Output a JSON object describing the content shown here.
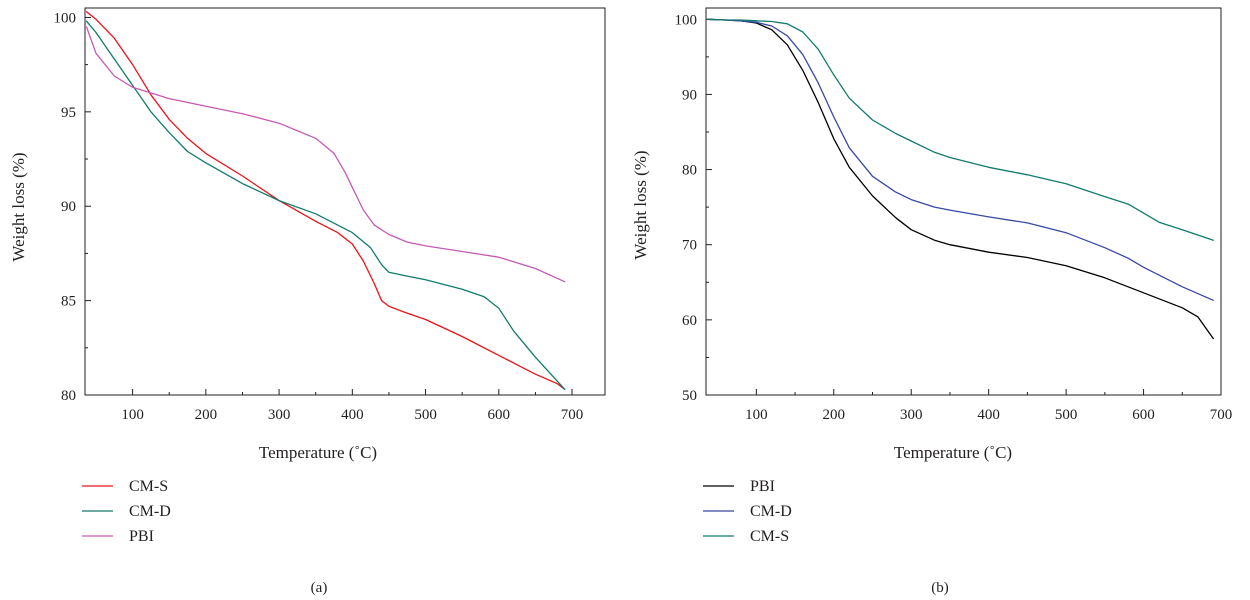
{
  "chart_data": [
    {
      "panel": "(a)",
      "type": "line",
      "title": "",
      "xlabel": "Temperature (˚C)",
      "ylabel": "Weight loss (%)",
      "xlim": [
        35,
        745
      ],
      "ylim": [
        80,
        100.5
      ],
      "xticks": [
        100,
        200,
        300,
        400,
        500,
        600,
        700
      ],
      "yticks": [
        80,
        85,
        90,
        95,
        100
      ],
      "grid": false,
      "legend_position": "bottom-left, below plot",
      "series": [
        {
          "name": "CM-S",
          "color": "#e8141b",
          "x": [
            37,
            50,
            75,
            100,
            125,
            150,
            175,
            200,
            250,
            300,
            350,
            380,
            400,
            415,
            430,
            440,
            450,
            470,
            500,
            550,
            600,
            650,
            680,
            690
          ],
          "y": [
            100.3,
            99.9,
            98.9,
            97.5,
            95.9,
            94.6,
            93.6,
            92.8,
            91.6,
            90.3,
            89.2,
            88.6,
            88.0,
            87.1,
            85.9,
            85.0,
            84.7,
            84.4,
            84.0,
            83.1,
            82.1,
            81.1,
            80.6,
            80.3
          ]
        },
        {
          "name": "CM-D",
          "color": "#127b6c",
          "x": [
            37,
            50,
            75,
            100,
            125,
            150,
            175,
            200,
            250,
            300,
            350,
            400,
            425,
            440,
            450,
            475,
            500,
            550,
            580,
            600,
            620,
            650,
            690
          ],
          "y": [
            99.8,
            99.2,
            97.8,
            96.4,
            95.0,
            93.9,
            92.9,
            92.3,
            91.2,
            90.3,
            89.6,
            88.6,
            87.8,
            86.9,
            86.5,
            86.3,
            86.1,
            85.6,
            85.2,
            84.6,
            83.4,
            82.0,
            80.3
          ]
        },
        {
          "name": "PBI",
          "color": "#c65ab4",
          "x": [
            37,
            50,
            75,
            100,
            150,
            200,
            250,
            300,
            350,
            375,
            390,
            400,
            415,
            430,
            450,
            475,
            500,
            550,
            600,
            650,
            690
          ],
          "y": [
            99.5,
            98.1,
            96.9,
            96.3,
            95.7,
            95.3,
            94.9,
            94.4,
            93.6,
            92.8,
            91.8,
            91.0,
            89.8,
            89.0,
            88.5,
            88.1,
            87.9,
            87.6,
            87.3,
            86.7,
            86.0
          ]
        }
      ]
    },
    {
      "panel": "(b)",
      "type": "line",
      "title": "",
      "xlabel": "Temperature (˚C)",
      "ylabel": "Weight loss (%)",
      "xlim": [
        35,
        700
      ],
      "ylim": [
        50,
        101.5
      ],
      "xticks": [
        100,
        200,
        300,
        400,
        500,
        600,
        700
      ],
      "yticks": [
        50,
        60,
        70,
        80,
        90,
        100
      ],
      "grid": false,
      "legend_position": "bottom-left, below plot",
      "series": [
        {
          "name": "PBI",
          "color": "#000000",
          "x": [
            37,
            60,
            80,
            100,
            120,
            140,
            160,
            180,
            200,
            220,
            250,
            280,
            300,
            330,
            350,
            400,
            450,
            500,
            550,
            600,
            650,
            670,
            690
          ],
          "y": [
            100,
            99.9,
            99.8,
            99.5,
            98.6,
            96.6,
            93.2,
            88.9,
            84.1,
            80.3,
            76.5,
            73.6,
            72.0,
            70.6,
            70.0,
            69.0,
            68.3,
            67.2,
            65.6,
            63.6,
            61.6,
            60.4,
            57.5
          ]
        },
        {
          "name": "CM-D",
          "color": "#3848a6",
          "x": [
            37,
            60,
            80,
            100,
            120,
            140,
            160,
            180,
            200,
            220,
            250,
            280,
            300,
            330,
            350,
            400,
            450,
            500,
            550,
            580,
            600,
            650,
            690
          ],
          "y": [
            100,
            99.9,
            99.8,
            99.6,
            99.1,
            97.8,
            95.3,
            91.5,
            87.0,
            82.9,
            79.1,
            77.0,
            76.0,
            75.0,
            74.6,
            73.7,
            72.9,
            71.6,
            69.6,
            68.2,
            67.0,
            64.4,
            62.6
          ]
        },
        {
          "name": "CM-S",
          "color": "#127b6c",
          "x": [
            37,
            60,
            80,
            100,
            120,
            140,
            160,
            180,
            200,
            220,
            250,
            280,
            300,
            330,
            350,
            400,
            450,
            500,
            550,
            580,
            600,
            620,
            650,
            690
          ],
          "y": [
            100,
            99.9,
            99.9,
            99.8,
            99.7,
            99.4,
            98.3,
            96.0,
            92.6,
            89.5,
            86.6,
            84.8,
            83.8,
            82.3,
            81.6,
            80.3,
            79.3,
            78.1,
            76.4,
            75.4,
            74.2,
            73.0,
            72.0,
            70.6
          ]
        }
      ]
    }
  ]
}
